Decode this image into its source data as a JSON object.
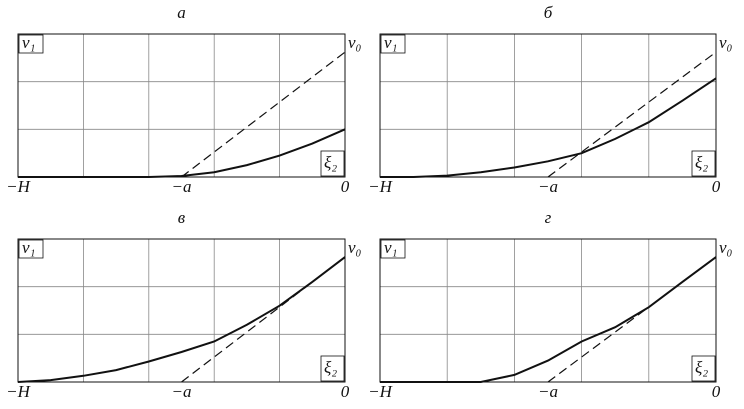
{
  "chart_data": [
    {
      "type": "line",
      "title": "а",
      "xlim": [
        -5,
        0
      ],
      "ylim": [
        0,
        3
      ],
      "xticks": [
        {
          "value": -5,
          "label": "−H"
        },
        {
          "value": -2.5,
          "label": "−a"
        },
        0
      ],
      "ylabel": "v₁",
      "xlabel": "ξ₂",
      "annotation": "v₀",
      "series": [
        {
          "color": "#111111",
          "x": [
            -5,
            -4.5,
            -4,
            -3.5,
            -3,
            -2.5,
            -2,
            -1.5,
            -1,
            -0.5,
            0
          ],
          "values": [
            0,
            0,
            0,
            0,
            0,
            0.02,
            0.1,
            0.25,
            0.45,
            0.7,
            1.0
          ]
        },
        {
          "color": "#111111",
          "dash": true,
          "x": [
            -2.5,
            0
          ],
          "values": [
            0,
            2.62
          ]
        }
      ]
    },
    {
      "type": "line",
      "title": "б",
      "xlim": [
        -5,
        0
      ],
      "ylim": [
        0,
        3
      ],
      "xticks": [
        {
          "value": -5,
          "label": "−H"
        },
        {
          "value": -2.5,
          "label": "−a"
        },
        0
      ],
      "ylabel": "v₁",
      "xlabel": "ξ₂",
      "annotation": "v₀",
      "series": [
        {
          "color": "#111111",
          "x": [
            -5,
            -4.5,
            -4,
            -3.5,
            -3,
            -2.5,
            -2,
            -1.5,
            -1,
            -0.5,
            0
          ],
          "values": [
            0,
            0,
            0.03,
            0.1,
            0.2,
            0.33,
            0.5,
            0.8,
            1.15,
            1.6,
            2.07
          ]
        },
        {
          "color": "#111111",
          "dash": true,
          "x": [
            -2.5,
            0
          ],
          "values": [
            0,
            2.62
          ]
        }
      ]
    },
    {
      "type": "line",
      "title": "в",
      "xlim": [
        -5,
        0
      ],
      "ylim": [
        0,
        3
      ],
      "xticks": [
        {
          "value": -5,
          "label": "−H"
        },
        {
          "value": -2.5,
          "label": "−a"
        },
        0
      ],
      "ylabel": "v₁",
      "xlabel": "ξ₂",
      "annotation": "v₀",
      "series": [
        {
          "color": "#111111",
          "x": [
            -5,
            -4.5,
            -4,
            -3.5,
            -3,
            -2.5,
            -2,
            -1.5,
            -1,
            -0.5,
            0
          ],
          "values": [
            0,
            0.04,
            0.13,
            0.25,
            0.43,
            0.63,
            0.85,
            1.2,
            1.6,
            2.1,
            2.62
          ]
        },
        {
          "color": "#111111",
          "dash": true,
          "x": [
            -2.5,
            0
          ],
          "values": [
            0,
            2.62
          ]
        }
      ]
    },
    {
      "type": "line",
      "title": "г",
      "xlim": [
        -5,
        0
      ],
      "ylim": [
        0,
        3
      ],
      "xticks": [
        {
          "value": -5,
          "label": "−H"
        },
        {
          "value": -2.5,
          "label": "−a"
        },
        0
      ],
      "ylabel": "v₁",
      "xlabel": "ξ₂",
      "annotation": "v₀",
      "series": [
        {
          "color": "#111111",
          "x": [
            -5,
            -4.5,
            -4,
            -3.5,
            -3,
            -2.5,
            -2,
            -1.5,
            -1,
            -0.5,
            0
          ],
          "values": [
            0,
            0,
            0,
            0,
            0.15,
            0.45,
            0.85,
            1.15,
            1.57,
            2.1,
            2.62
          ]
        },
        {
          "color": "#111111",
          "dash": true,
          "x": [
            -2.5,
            0
          ],
          "values": [
            0,
            2.62
          ]
        }
      ]
    }
  ]
}
